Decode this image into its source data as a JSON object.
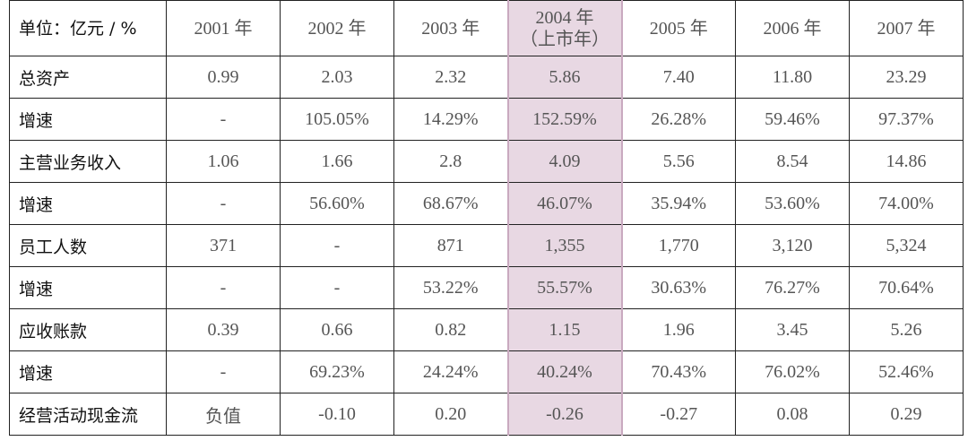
{
  "table": {
    "header": [
      "单位：亿元 / %",
      "2001 年",
      "2002 年",
      "2003 年",
      "2004 年\n（上市年）",
      "2005 年",
      "2006 年",
      "2007 年"
    ],
    "rows": [
      [
        "总资产",
        "0.99",
        "2.03",
        "2.32",
        "5.86",
        "7.40",
        "11.80",
        "23.29"
      ],
      [
        "增速",
        "-",
        "105.05%",
        "14.29%",
        "152.59%",
        "26.28%",
        "59.46%",
        "97.37%"
      ],
      [
        "主营业务收入",
        "1.06",
        "1.66",
        "2.8",
        "4.09",
        "5.56",
        "8.54",
        "14.86"
      ],
      [
        "增速",
        "-",
        "56.60%",
        "68.67%",
        "46.07%",
        "35.94%",
        "53.60%",
        "74.00%"
      ],
      [
        "员工人数",
        "371",
        "-",
        "871",
        "1,355",
        "1,770",
        "3,120",
        "5,324"
      ],
      [
        "增速",
        "-",
        "-",
        "53.22%",
        "55.57%",
        "30.63%",
        "76.27%",
        "70.64%"
      ],
      [
        "应收账款",
        "0.39",
        "0.66",
        "0.82",
        "1.15",
        "1.96",
        "3.45",
        "5.26"
      ],
      [
        "增速",
        "-",
        "69.23%",
        "24.24%",
        "40.24%",
        "70.43%",
        "76.02%",
        "52.46%"
      ],
      [
        "经营活动现金流",
        "负值",
        "-0.10",
        "0.20",
        "-0.26",
        "-0.27",
        "0.08",
        "0.29"
      ]
    ]
  }
}
